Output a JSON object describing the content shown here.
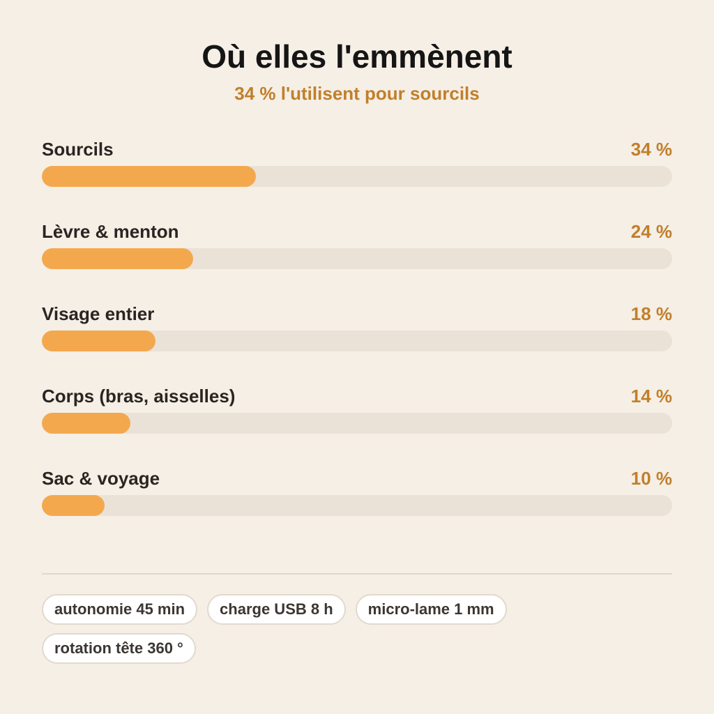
{
  "chart_data": {
    "type": "bar",
    "orientation": "horizontal",
    "title": "Où elles l'emmènent",
    "subtitle": "34 % l'utilisent pour sourcils",
    "categories": [
      "Sourcils",
      "Lèvre & menton",
      "Visage entier",
      "Corps (bras, aisselles)",
      "Sac & voyage"
    ],
    "values": [
      34,
      24,
      18,
      14,
      10
    ],
    "value_labels": [
      "34 %",
      "24 %",
      "18 %",
      "14 %",
      "10 %"
    ],
    "xlim": [
      0,
      100
    ],
    "colors": {
      "bar": "#f4a84e",
      "track": "#ebe2d7",
      "value_text": "#c17f2b",
      "background": "#f5efe6"
    }
  },
  "chips": [
    "autonomie 45 min",
    "charge USB 8 h",
    "micro-lame 1 mm",
    "rotation tête 360 °"
  ]
}
